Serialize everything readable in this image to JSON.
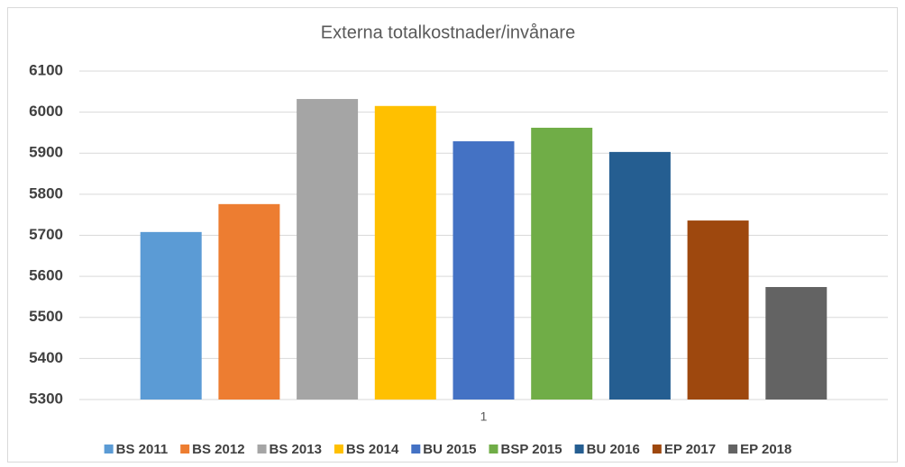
{
  "chart_data": {
    "type": "bar",
    "title": "Externa totalkostnader/invånare",
    "categories": [
      "1"
    ],
    "series": [
      {
        "name": "BS 2011",
        "color": "#5b9bd5",
        "values": [
          5708
        ]
      },
      {
        "name": "BS 2012",
        "color": "#ed7d31",
        "values": [
          5776
        ]
      },
      {
        "name": "BS 2013",
        "color": "#a5a5a5",
        "values": [
          6032
        ]
      },
      {
        "name": "BS 2014",
        "color": "#ffc000",
        "values": [
          6015
        ]
      },
      {
        "name": "BU 2015",
        "color": "#4472c4",
        "values": [
          5929
        ]
      },
      {
        "name": "BSP 2015",
        "color": "#70ad47",
        "values": [
          5962
        ]
      },
      {
        "name": "BU 2016",
        "color": "#255e91",
        "values": [
          5903
        ]
      },
      {
        "name": "EP 2017",
        "color": "#9e480e",
        "values": [
          5736
        ]
      },
      {
        "name": "EP 2018",
        "color": "#636363",
        "values": [
          5574
        ]
      }
    ],
    "ylim": [
      5300,
      6100
    ],
    "yticks": [
      5300,
      5400,
      5500,
      5600,
      5700,
      5800,
      5900,
      6000,
      6100
    ],
    "grid": true,
    "legend": "bottom"
  }
}
